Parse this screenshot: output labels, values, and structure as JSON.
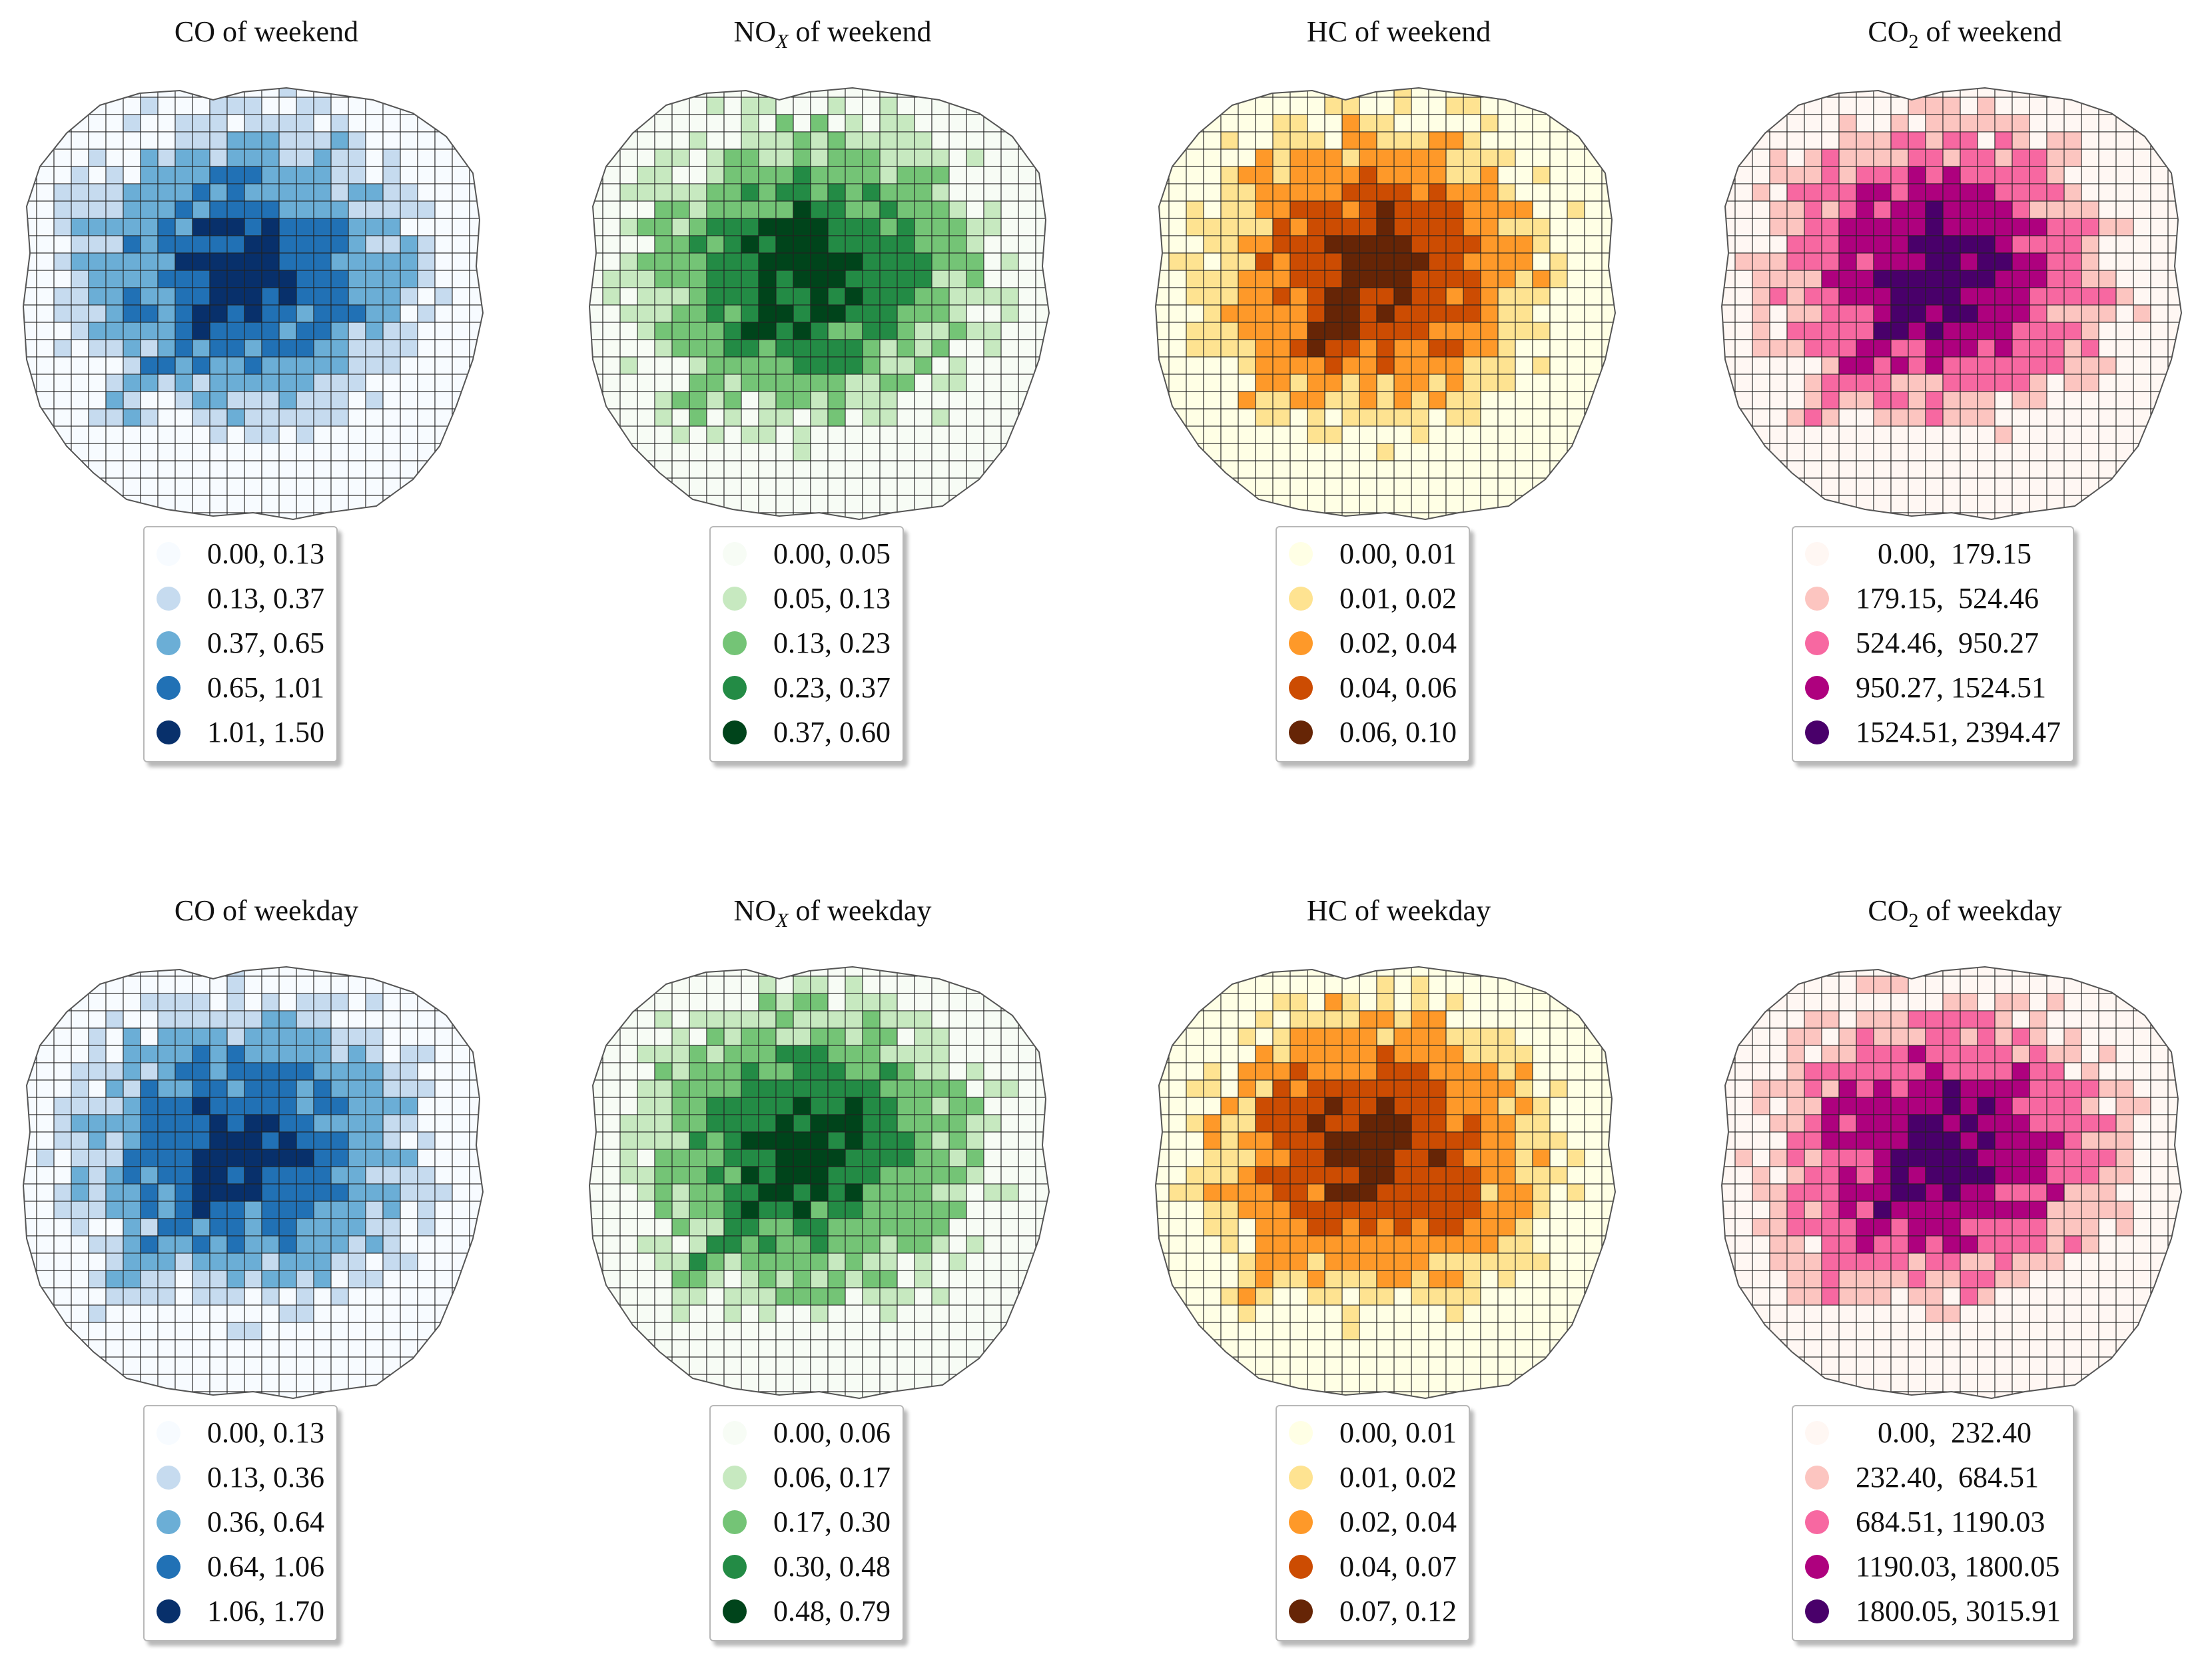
{
  "figure": {
    "panels": [
      {
        "id": "co-weekend",
        "row": 0,
        "col": 0,
        "title_main": "CO",
        "title_sub": "",
        "title_rest": " of weekend",
        "colors": [
          "#f7fbff",
          "#c6dbef",
          "#6baed6",
          "#2171b5",
          "#08306b"
        ],
        "bins": [
          "0.00, 0.13",
          "0.13, 0.37",
          "0.37, 0.65",
          "0.65, 1.01",
          "1.01, 1.50"
        ],
        "ranges": [
          [
            0.0,
            0.13
          ],
          [
            0.13,
            0.37
          ],
          [
            0.37,
            0.65
          ],
          [
            0.65,
            1.01
          ],
          [
            1.01,
            1.5
          ]
        ]
      },
      {
        "id": "nox-weekend",
        "row": 0,
        "col": 1,
        "title_main": "NO",
        "title_sub": "X",
        "title_rest": " of weekend",
        "colors": [
          "#f7fcf5",
          "#c7e9c0",
          "#74c476",
          "#238b45",
          "#00441b"
        ],
        "bins": [
          "0.00, 0.05",
          "0.05, 0.13",
          "0.13, 0.23",
          "0.23, 0.37",
          "0.37, 0.60"
        ],
        "ranges": [
          [
            0.0,
            0.05
          ],
          [
            0.05,
            0.13
          ],
          [
            0.13,
            0.23
          ],
          [
            0.23,
            0.37
          ],
          [
            0.37,
            0.6
          ]
        ]
      },
      {
        "id": "hc-weekend",
        "row": 0,
        "col": 2,
        "title_main": "HC",
        "title_sub": "",
        "title_rest": " of weekend",
        "colors": [
          "#ffffe5",
          "#fee391",
          "#fe9929",
          "#cc4c02",
          "#662506"
        ],
        "bins": [
          "0.00, 0.01",
          "0.01, 0.02",
          "0.02, 0.04",
          "0.04, 0.06",
          "0.06, 0.10"
        ],
        "ranges": [
          [
            0.0,
            0.01
          ],
          [
            0.01,
            0.02
          ],
          [
            0.02,
            0.04
          ],
          [
            0.04,
            0.06
          ],
          [
            0.06,
            0.1
          ]
        ]
      },
      {
        "id": "co2-weekend",
        "row": 0,
        "col": 3,
        "title_main": "CO",
        "title_sub": "2",
        "title_rest": " of weekend",
        "colors": [
          "#fff7f3",
          "#fcc5c0",
          "#f768a1",
          "#ae017e",
          "#49006a"
        ],
        "bins": [
          "   0.00,  179.15",
          "179.15,  524.46",
          "524.46,  950.27",
          "950.27, 1524.51",
          "1524.51, 2394.47"
        ],
        "ranges": [
          [
            0.0,
            179.15
          ],
          [
            179.15,
            524.46
          ],
          [
            524.46,
            950.27
          ],
          [
            950.27,
            1524.51
          ],
          [
            1524.51,
            2394.47
          ]
        ]
      },
      {
        "id": "co-weekday",
        "row": 1,
        "col": 0,
        "title_main": "CO",
        "title_sub": "",
        "title_rest": " of weekday",
        "colors": [
          "#f7fbff",
          "#c6dbef",
          "#6baed6",
          "#2171b5",
          "#08306b"
        ],
        "bins": [
          "0.00, 0.13",
          "0.13, 0.36",
          "0.36, 0.64",
          "0.64, 1.06",
          "1.06, 1.70"
        ],
        "ranges": [
          [
            0.0,
            0.13
          ],
          [
            0.13,
            0.36
          ],
          [
            0.36,
            0.64
          ],
          [
            0.64,
            1.06
          ],
          [
            1.06,
            1.7
          ]
        ]
      },
      {
        "id": "nox-weekday",
        "row": 1,
        "col": 1,
        "title_main": "NO",
        "title_sub": "X",
        "title_rest": " of weekday",
        "colors": [
          "#f7fcf5",
          "#c7e9c0",
          "#74c476",
          "#238b45",
          "#00441b"
        ],
        "bins": [
          "0.00, 0.06",
          "0.06, 0.17",
          "0.17, 0.30",
          "0.30, 0.48",
          "0.48, 0.79"
        ],
        "ranges": [
          [
            0.0,
            0.06
          ],
          [
            0.06,
            0.17
          ],
          [
            0.17,
            0.3
          ],
          [
            0.3,
            0.48
          ],
          [
            0.48,
            0.79
          ]
        ]
      },
      {
        "id": "hc-weekday",
        "row": 1,
        "col": 2,
        "title_main": "HC",
        "title_sub": "",
        "title_rest": " of weekday",
        "colors": [
          "#ffffe5",
          "#fee391",
          "#fe9929",
          "#cc4c02",
          "#662506"
        ],
        "bins": [
          "0.00, 0.01",
          "0.01, 0.02",
          "0.02, 0.04",
          "0.04, 0.07",
          "0.07, 0.12"
        ],
        "ranges": [
          [
            0.0,
            0.01
          ],
          [
            0.01,
            0.02
          ],
          [
            0.02,
            0.04
          ],
          [
            0.04,
            0.07
          ],
          [
            0.07,
            0.12
          ]
        ]
      },
      {
        "id": "co2-weekday",
        "row": 1,
        "col": 3,
        "title_main": "CO",
        "title_sub": "2",
        "title_rest": " of weekday",
        "colors": [
          "#fff7f3",
          "#fcc5c0",
          "#f768a1",
          "#ae017e",
          "#49006a"
        ],
        "bins": [
          "   0.00,  232.40",
          "232.40,  684.51",
          "684.51, 1190.03",
          "1190.03, 1800.05",
          "1800.05, 3015.91"
        ],
        "ranges": [
          [
            0.0,
            232.4
          ],
          [
            232.4,
            684.51
          ],
          [
            684.51,
            1190.03
          ],
          [
            1190.03,
            1800.05
          ],
          [
            1800.05,
            3015.91
          ]
        ]
      }
    ]
  },
  "chart_data": [
    {
      "type": "heatmap",
      "title": "CO of weekend",
      "legend": [
        "0.00, 0.13",
        "0.13, 0.37",
        "0.37, 0.65",
        "0.65, 1.01",
        "1.01, 1.50"
      ],
      "grid": true
    },
    {
      "type": "heatmap",
      "title": "NOX of weekend",
      "legend": [
        "0.00, 0.05",
        "0.05, 0.13",
        "0.13, 0.23",
        "0.23, 0.37",
        "0.37, 0.60"
      ],
      "grid": true
    },
    {
      "type": "heatmap",
      "title": "HC of weekend",
      "legend": [
        "0.00, 0.01",
        "0.01, 0.02",
        "0.02, 0.04",
        "0.04, 0.06",
        "0.06, 0.10"
      ],
      "grid": true
    },
    {
      "type": "heatmap",
      "title": "CO2 of weekend",
      "legend": [
        "0.00, 179.15",
        "179.15, 524.46",
        "524.46, 950.27",
        "950.27, 1524.51",
        "1524.51, 2394.47"
      ],
      "grid": true
    },
    {
      "type": "heatmap",
      "title": "CO of weekday",
      "legend": [
        "0.00, 0.13",
        "0.13, 0.36",
        "0.36, 0.64",
        "0.64, 1.06",
        "1.06, 1.70"
      ],
      "grid": true
    },
    {
      "type": "heatmap",
      "title": "NOX of weekday",
      "legend": [
        "0.00, 0.06",
        "0.06, 0.17",
        "0.17, 0.30",
        "0.30, 0.48",
        "0.48, 0.79"
      ],
      "grid": true
    },
    {
      "type": "heatmap",
      "title": "HC of weekday",
      "legend": [
        "0.00, 0.01",
        "0.01, 0.02",
        "0.02, 0.04",
        "0.04, 0.07",
        "0.07, 0.12"
      ],
      "grid": true
    },
    {
      "type": "heatmap",
      "title": "CO2 of weekday",
      "legend": [
        "0.00, 232.40",
        "232.40, 684.51",
        "684.51, 1190.03",
        "1190.03, 1800.05",
        "1800.05, 3015.91"
      ],
      "grid": true
    }
  ]
}
